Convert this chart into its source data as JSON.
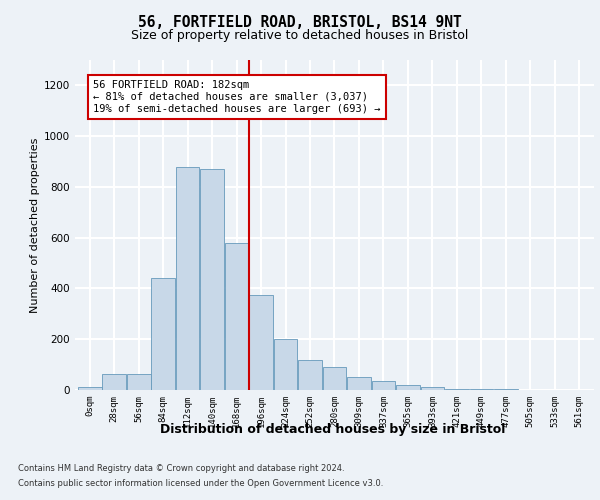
{
  "title1": "56, FORTFIELD ROAD, BRISTOL, BS14 9NT",
  "title2": "Size of property relative to detached houses in Bristol",
  "xlabel": "Distribution of detached houses by size in Bristol",
  "ylabel": "Number of detached properties",
  "categories": [
    "0sqm",
    "28sqm",
    "56sqm",
    "84sqm",
    "112sqm",
    "140sqm",
    "168sqm",
    "196sqm",
    "224sqm",
    "252sqm",
    "280sqm",
    "309sqm",
    "337sqm",
    "365sqm",
    "393sqm",
    "421sqm",
    "449sqm",
    "477sqm",
    "505sqm",
    "533sqm",
    "561sqm"
  ],
  "bar_heights": [
    10,
    65,
    65,
    440,
    880,
    870,
    580,
    375,
    200,
    120,
    90,
    50,
    35,
    20,
    12,
    5,
    3,
    2,
    1,
    1,
    1
  ],
  "bar_color": "#c8d8e8",
  "bar_edgecolor": "#6699bb",
  "annotation_box_text": "56 FORTFIELD ROAD: 182sqm\n← 81% of detached houses are smaller (3,037)\n19% of semi-detached houses are larger (693) →",
  "ylim": [
    0,
    1300
  ],
  "yticks": [
    0,
    200,
    400,
    600,
    800,
    1000,
    1200
  ],
  "footer1": "Contains HM Land Registry data © Crown copyright and database right 2024.",
  "footer2": "Contains public sector information licensed under the Open Government Licence v3.0.",
  "background_color": "#edf2f7",
  "plot_background": "#edf2f7",
  "grid_color": "#ffffff",
  "vline_color": "#cc0000",
  "box_edgecolor": "#cc0000",
  "box_facecolor": "#ffffff",
  "vline_position": 6.5,
  "title1_fontsize": 10.5,
  "title2_fontsize": 9,
  "ylabel_fontsize": 8,
  "xlabel_fontsize": 9,
  "tick_fontsize": 6.5,
  "ytick_fontsize": 7.5,
  "footer_fontsize": 6.0,
  "annot_fontsize": 7.5
}
